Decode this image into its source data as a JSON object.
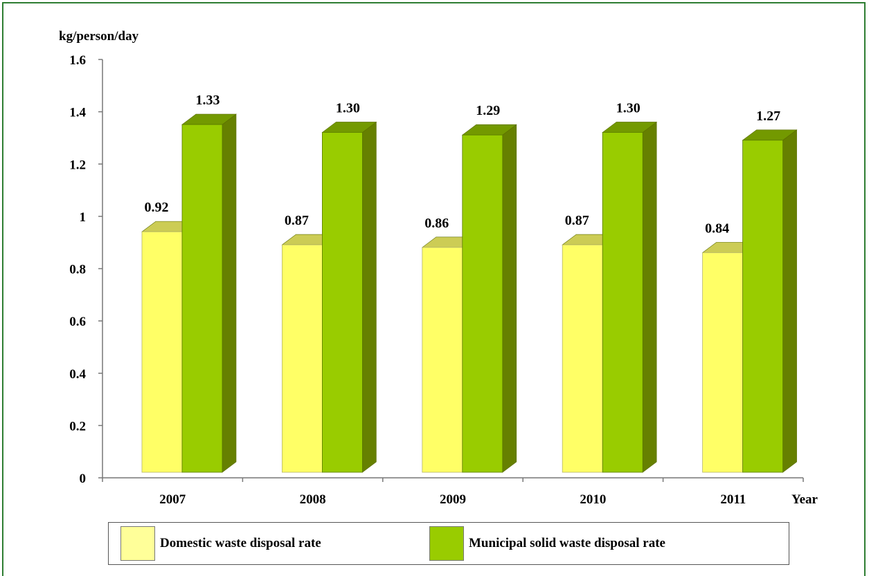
{
  "chart_data": {
    "type": "bar",
    "ylabel": "kg/person/day",
    "xlabel": "Year",
    "categories": [
      "2007",
      "2008",
      "2009",
      "2010",
      "2011"
    ],
    "ylim": [
      0,
      1.6
    ],
    "yticks": [
      "0",
      "0.2",
      "0.4",
      "0.6",
      "0.8",
      "1",
      "1.2",
      "1.4",
      "1.6"
    ],
    "series": [
      {
        "name": "Domestic waste disposal rate",
        "values": [
          0.92,
          0.87,
          0.86,
          0.87,
          0.84
        ],
        "labels": [
          "0.92",
          "0.87",
          "0.86",
          "0.87",
          "0.84"
        ],
        "color": "#ffff66",
        "top_color": "#cccc55",
        "side_color": "#b8b850"
      },
      {
        "name": "Municipal solid waste disposal rate",
        "values": [
          1.33,
          1.3,
          1.29,
          1.3,
          1.27
        ],
        "labels": [
          "1.33",
          "1.30",
          "1.29",
          "1.30",
          "1.27"
        ],
        "color": "#99cc00",
        "top_color": "#739900",
        "side_color": "#668000"
      }
    ],
    "style": "3d-clustered-column",
    "legend_position": "bottom",
    "grid": false
  }
}
